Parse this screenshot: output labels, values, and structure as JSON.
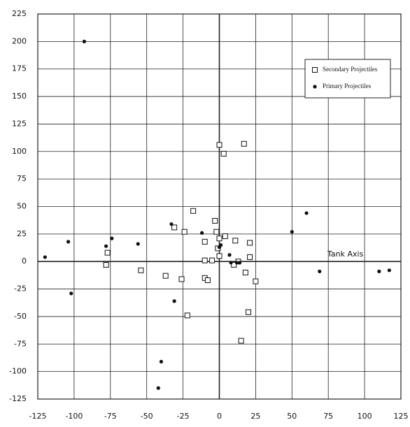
{
  "chart_data": {
    "type": "scatter",
    "annotation": "Tank Axis",
    "xlim": [
      -125,
      125
    ],
    "ylim": [
      -125,
      225
    ],
    "xticks": [
      -125,
      -100,
      -75,
      -50,
      -25,
      0,
      25,
      50,
      75,
      100,
      125
    ],
    "yticks": [
      -125,
      -100,
      -75,
      -50,
      -25,
      0,
      25,
      50,
      75,
      100,
      125,
      150,
      175,
      200,
      225
    ],
    "grid": true,
    "legend": "upper right",
    "series": [
      {
        "name": "Secondary Projectiles",
        "color": "#111111",
        "marker": "square",
        "x": [
          0,
          17,
          3,
          -18,
          -3,
          -31,
          -24,
          -2,
          4,
          11,
          0,
          -10,
          21,
          -1,
          -77,
          0,
          21,
          -10,
          -5,
          13,
          10,
          -78,
          -54,
          -37,
          -26,
          -10,
          -8,
          18,
          25,
          20,
          -22,
          15
        ],
        "values": [
          106,
          107,
          98,
          46,
          37,
          31,
          27,
          27,
          23,
          19,
          21,
          18,
          17,
          12,
          8,
          5,
          4,
          1,
          1,
          0,
          -3,
          -3,
          -8,
          -13,
          -16,
          -15,
          -17,
          -10,
          -18,
          -46,
          -49,
          -72
        ]
      },
      {
        "name": "Primary Projectiles",
        "color": "#111111",
        "marker": "circle",
        "x": [
          -93,
          -120,
          -104,
          -102,
          -78,
          -74,
          -56,
          -33,
          -12,
          0,
          1,
          7,
          8,
          12,
          14,
          50,
          60,
          69,
          110,
          117,
          -31,
          -40,
          -42
        ],
        "values": [
          200,
          4,
          18,
          -29,
          14,
          21,
          16,
          34,
          26,
          13,
          15,
          6,
          -1,
          -1,
          -1,
          27,
          44,
          -9,
          -9,
          -8,
          -36,
          -91,
          -115
        ]
      }
    ]
  }
}
